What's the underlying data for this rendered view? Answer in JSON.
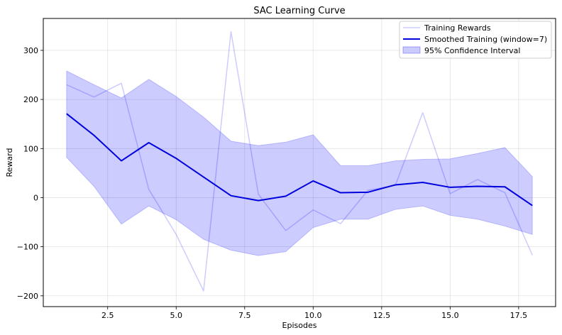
{
  "chart_data": {
    "type": "line",
    "title": "SAC Learning Curve",
    "xlabel": "Episodes",
    "ylabel": "Reward",
    "xlim": [
      0.15,
      18.85
    ],
    "ylim": [
      -222,
      365
    ],
    "xticks": [
      2.5,
      5.0,
      7.5,
      10.0,
      12.5,
      15.0,
      17.5
    ],
    "xtick_labels": [
      "2.5",
      "5.0",
      "7.5",
      "10.0",
      "12.5",
      "15.0",
      "17.5"
    ],
    "yticks": [
      -200,
      -100,
      0,
      100,
      200,
      300
    ],
    "ytick_labels": [
      "−200",
      "−100",
      "0",
      "100",
      "200",
      "300"
    ],
    "grid": true,
    "legend_position": "top-right",
    "x": [
      1,
      2,
      3,
      4,
      5,
      6,
      7,
      8,
      9,
      10,
      11,
      12,
      13,
      14,
      15,
      16,
      17,
      18
    ],
    "series": [
      {
        "name": "Training Rewards",
        "kind": "line",
        "color": "#0000ff",
        "opacity": 0.2,
        "values": [
          230,
          205,
          233,
          17,
          -75,
          -190,
          338,
          7,
          -67,
          -25,
          -53,
          15,
          25,
          173,
          8,
          37,
          10,
          -117
        ]
      },
      {
        "name": "Smoothed Training (window=7)",
        "kind": "line",
        "color": "#0000dd",
        "opacity": 1.0,
        "values": [
          171,
          127,
          75,
          112,
          80,
          42,
          4,
          -6,
          3,
          34,
          10,
          11,
          26,
          31,
          21,
          23,
          22,
          -16
        ]
      },
      {
        "name": "95% Confidence Interval",
        "kind": "band",
        "color": "#0000ff",
        "opacity": 0.2,
        "upper": [
          258,
          230,
          203,
          241,
          206,
          164,
          115,
          106,
          113,
          128,
          65,
          65,
          75,
          78,
          79,
          90,
          102,
          43
        ],
        "lower": [
          82,
          23,
          -54,
          -17,
          -45,
          -85,
          -107,
          -118,
          -110,
          -61,
          -44,
          -44,
          -24,
          -17,
          -36,
          -44,
          -58,
          -75
        ]
      }
    ]
  }
}
